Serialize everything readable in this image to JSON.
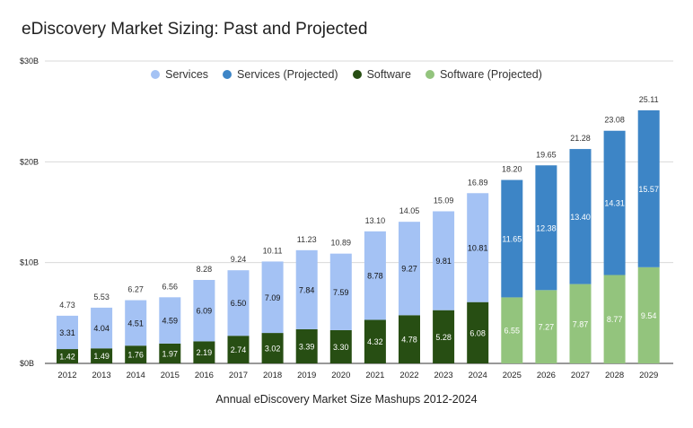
{
  "chart_data": {
    "type": "bar",
    "stacked": true,
    "title": "eDiscovery Market Sizing: Past and Projected",
    "xlabel": "Annual eDiscovery Market Size Mashups 2012-2024",
    "ylabel": "",
    "ylim": [
      0,
      30
    ],
    "yticks": [
      {
        "value": 0,
        "label": "$0B"
      },
      {
        "value": 10,
        "label": "$10B"
      },
      {
        "value": 20,
        "label": "$20B"
      },
      {
        "value": 30,
        "label": "$30B"
      }
    ],
    "grid": true,
    "legend_position": "top-center",
    "categories": [
      "2012",
      "2013",
      "2014",
      "2015",
      "2016",
      "2017",
      "2018",
      "2019",
      "2020",
      "2021",
      "2022",
      "2023",
      "2024",
      "2025",
      "2026",
      "2027",
      "2028",
      "2029"
    ],
    "totals": [
      "4.73",
      "5.53",
      "6.27",
      "6.56",
      "8.28",
      "9.24",
      "10.11",
      "11.23",
      "10.89",
      "13.10",
      "14.05",
      "15.09",
      "16.89",
      "18.20",
      "19.65",
      "21.28",
      "23.08",
      "25.11"
    ],
    "software": [
      1.42,
      1.49,
      1.76,
      1.97,
      2.19,
      2.74,
      3.02,
      3.39,
      3.3,
      4.32,
      4.78,
      5.28,
      6.08,
      6.55,
      7.27,
      7.87,
      8.77,
      9.54
    ],
    "services": [
      3.31,
      4.04,
      4.51,
      4.59,
      6.09,
      6.5,
      7.09,
      7.84,
      7.59,
      8.78,
      9.27,
      9.81,
      10.81,
      11.65,
      12.38,
      13.4,
      14.31,
      15.57
    ],
    "projected_from_index": 13,
    "series": [
      {
        "name": "Services",
        "color": "#a4c2f4"
      },
      {
        "name": "Services (Projected)",
        "color": "#3d85c6"
      },
      {
        "name": "Software",
        "color": "#274e13"
      },
      {
        "name": "Software (Projected)",
        "color": "#93c47d"
      }
    ]
  }
}
